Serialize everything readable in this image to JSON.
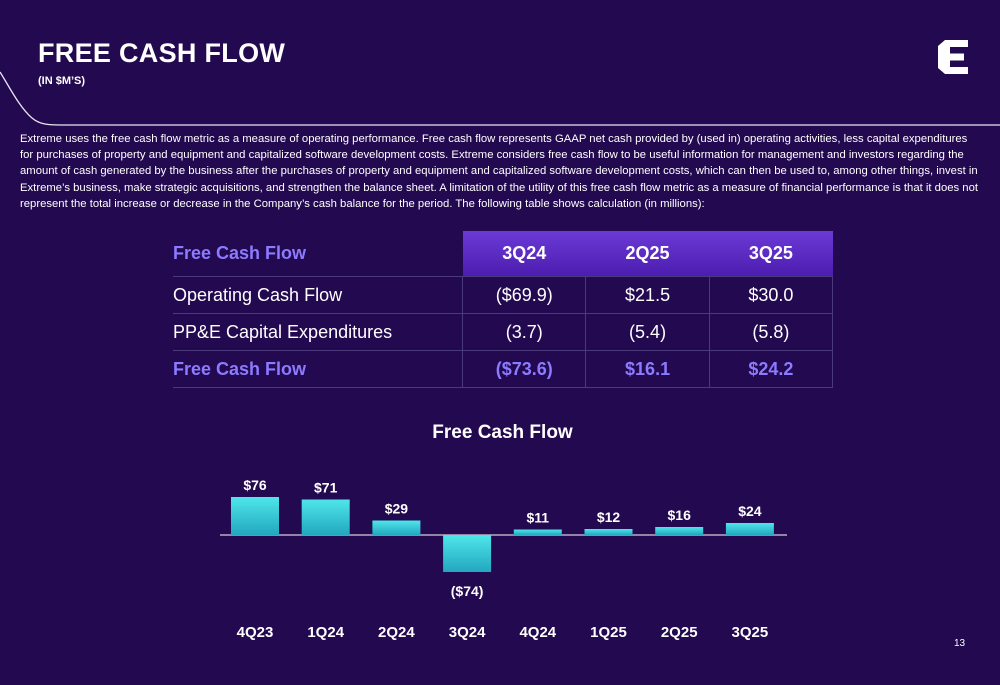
{
  "header": {
    "title": "FREE CASH FLOW",
    "subtitle": "(IN $M’S)"
  },
  "description": "Extreme uses the free cash flow metric as a measure of operating performance. Free cash flow represents GAAP net cash provided by (used in) operating activities, less capital expenditures for purchases of property and equipment and capitalized software development costs.  Extreme considers free cash flow to be useful information for management and investors regarding the amount of cash generated by the business after the purchases of property and equipment and capitalized software development costs, which can then be used to, among other things, invest in Extreme’s business, make strategic acquisitions, and strengthen the balance sheet. A limitation of the utility of this free cash flow metric as a measure of financial performance is that it does not represent the total increase or decrease in the Company’s cash balance for the period. The following table shows calculation (in millions):",
  "table": {
    "header": {
      "label": "Free Cash Flow",
      "q1": "3Q24",
      "q2": "2Q25",
      "q3": "3Q25"
    },
    "rows": [
      {
        "label": "Operating Cash Flow",
        "q1": "($69.9)",
        "q2": "$21.5",
        "q3": "$30.0"
      },
      {
        "label": "PP&E Capital Expenditures",
        "q1": "(3.7)",
        "q2": "(5.4)",
        "q3": "(5.8)"
      },
      {
        "label": "Free Cash Flow",
        "q1": "($73.6)",
        "q2": "$16.1",
        "q3": "$24.2"
      }
    ]
  },
  "colors": {
    "background": "#23094f",
    "accent": "#8b7bff",
    "bar_top": "#4fe6ea",
    "bar_bottom": "#22a7bf"
  },
  "chart_data": {
    "type": "bar",
    "title": "Free Cash Flow",
    "categories": [
      "4Q23",
      "1Q24",
      "2Q24",
      "3Q24",
      "4Q24",
      "1Q25",
      "2Q25",
      "3Q25"
    ],
    "values": [
      76,
      71,
      29,
      -74,
      11,
      12,
      16,
      24
    ],
    "data_labels": [
      "$76",
      "$71",
      "$29",
      "($74)",
      "$11",
      "$12",
      "$16",
      "$24"
    ],
    "xlabel": "",
    "ylabel": "",
    "grid": false,
    "legend": "none"
  },
  "footer": {
    "page_number": "13"
  }
}
